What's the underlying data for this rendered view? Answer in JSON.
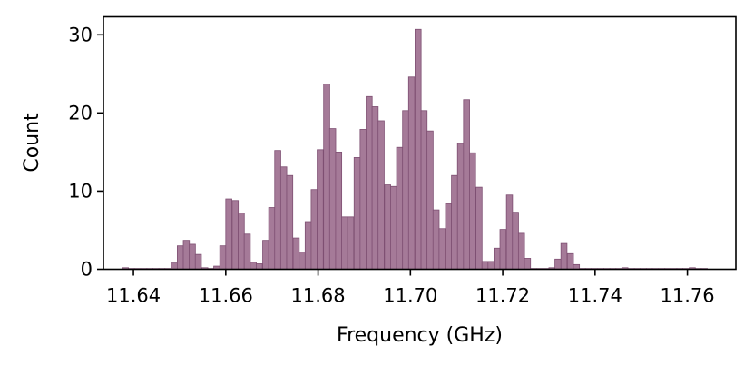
{
  "chart_data": {
    "type": "bar",
    "title": "",
    "xlabel": "Frequency (GHz)",
    "ylabel": "Count",
    "xlim": [
      11.6335,
      11.7705
    ],
    "ylim": [
      0,
      32.3
    ],
    "xticks": [
      11.64,
      11.66,
      11.68,
      11.7,
      11.72,
      11.74,
      11.76
    ],
    "xtick_labels": [
      "11.64",
      "11.66",
      "11.68",
      "11.70",
      "11.72",
      "11.74",
      "11.76"
    ],
    "yticks": [
      0,
      10,
      20,
      30
    ],
    "ytick_labels": [
      "0",
      "10",
      "20",
      "30"
    ],
    "grid": false,
    "legend": "none",
    "bin_width": 0.00132,
    "bar_color": "#a57a98",
    "bar_edge_color": "#7e4f72",
    "bins_left": [
      11.6376,
      11.6389,
      11.6402,
      11.6416,
      11.6429,
      11.6442,
      11.6455,
      11.6468,
      11.6482,
      11.6495,
      11.6508,
      11.6521,
      11.6534,
      11.6548,
      11.6561,
      11.6574,
      11.6587,
      11.66,
      11.6614,
      11.6627,
      11.664,
      11.6653,
      11.6666,
      11.668,
      11.6693,
      11.6706,
      11.6719,
      11.6732,
      11.6746,
      11.6759,
      11.6772,
      11.6785,
      11.6798,
      11.6812,
      11.6825,
      11.6838,
      11.6851,
      11.6864,
      11.6878,
      11.6891,
      11.6904,
      11.6917,
      11.693,
      11.6944,
      11.6957,
      11.697,
      11.6983,
      11.6996,
      11.701,
      11.7023,
      11.7036,
      11.7049,
      11.7062,
      11.7076,
      11.7089,
      11.7102,
      11.7115,
      11.7128,
      11.7142,
      11.7155,
      11.7168,
      11.7181,
      11.7194,
      11.7208,
      11.7221,
      11.7234,
      11.7247,
      11.726,
      11.7274,
      11.7287,
      11.73,
      11.7313,
      11.7326,
      11.734,
      11.7353,
      11.7366,
      11.7379,
      11.7392,
      11.7406,
      11.7419,
      11.7432,
      11.7445,
      11.7458,
      11.7472,
      11.7485,
      11.7498,
      11.7511,
      11.7524,
      11.7538,
      11.7551,
      11.7564,
      11.7577,
      11.759,
      11.7604,
      11.7617,
      11.763
    ],
    "counts": [
      0.2,
      0.1,
      0.1,
      0.1,
      0.1,
      0.1,
      0.1,
      0.1,
      0.8,
      3.0,
      3.7,
      3.2,
      1.9,
      0.2,
      0.1,
      0.4,
      3.0,
      9.0,
      8.8,
      7.2,
      4.5,
      0.9,
      0.7,
      3.7,
      7.9,
      15.2,
      13.1,
      12.0,
      4.0,
      2.2,
      6.1,
      10.2,
      15.3,
      23.7,
      18.0,
      15.0,
      6.7,
      6.7,
      14.3,
      17.9,
      22.1,
      20.8,
      19.0,
      10.8,
      10.6,
      15.6,
      20.3,
      24.6,
      30.7,
      20.3,
      17.7,
      7.6,
      5.2,
      8.4,
      12.0,
      16.1,
      21.7,
      14.9,
      10.5,
      1.0,
      1.0,
      2.7,
      5.1,
      9.5,
      7.3,
      4.6,
      1.4,
      0.1,
      0.1,
      0.1,
      0.2,
      1.3,
      3.3,
      2.0,
      0.6,
      0.1,
      0.1,
      0.1,
      0.1,
      0.1,
      0.1,
      0.1,
      0.2,
      0.1,
      0.1,
      0.1,
      0.1,
      0.1,
      0.1,
      0.1,
      0.1,
      0.1,
      0.1,
      0.2,
      0.1,
      0.1
    ]
  }
}
